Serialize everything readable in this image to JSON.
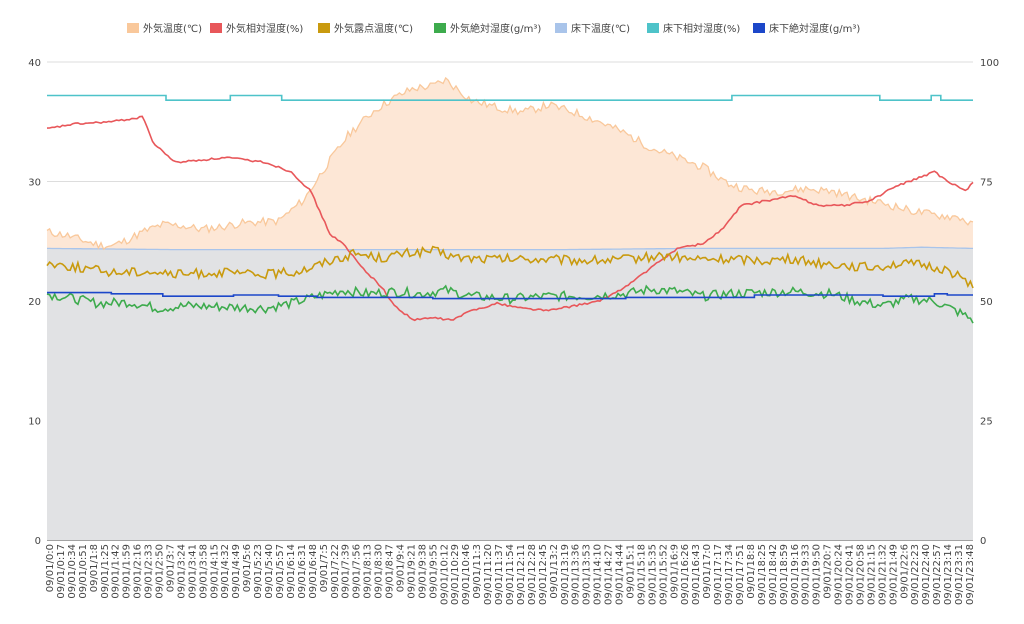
{
  "chart_data": {
    "type": "line",
    "legend_position": "top",
    "grid": true,
    "left_axis": {
      "ylim": [
        0,
        40
      ],
      "ticks": [
        "0",
        "10",
        "20",
        "30",
        "40"
      ]
    },
    "right_axis": {
      "ylim": [
        0,
        100
      ],
      "ticks": [
        "0",
        "25",
        "50",
        "75",
        "100"
      ]
    },
    "x_labels": [
      "09/01/0:0",
      "09/01/0:17",
      "09/01/0:34",
      "09/01/0:51",
      "09/01/1:8",
      "09/01/1:25",
      "09/01/1:42",
      "09/01/1:59",
      "09/01/2:16",
      "09/01/2:33",
      "09/01/2:50",
      "09/01/3:7",
      "09/01/3:24",
      "09/01/3:41",
      "09/01/3:58",
      "09/01/4:15",
      "09/01/4:32",
      "09/01/4:49",
      "09/01/5:6",
      "09/01/5:23",
      "09/01/5:40",
      "09/01/5:57",
      "09/01/6:14",
      "09/01/6:31",
      "09/01/6:48",
      "09/01/7:5",
      "09/01/7:22",
      "09/01/7:39",
      "09/01/7:56",
      "09/01/8:13",
      "09/01/8:30",
      "09/01/8:47",
      "09/01/9:4",
      "09/01/9:21",
      "09/01/9:38",
      "09/01/9:55",
      "09/01/10:12",
      "09/01/10:29",
      "09/01/10:46",
      "09/01/11:3",
      "09/01/11:20",
      "09/01/11:37",
      "09/01/11:54",
      "09/01/12:11",
      "09/01/12:28",
      "09/01/12:45",
      "09/01/13:2",
      "09/01/13:19",
      "09/01/13:36",
      "09/01/13:53",
      "09/01/14:10",
      "09/01/14:27",
      "09/01/14:44",
      "09/01/15:1",
      "09/01/15:18",
      "09/01/15:35",
      "09/01/15:52",
      "09/01/16:9",
      "09/01/16:26",
      "09/01/16:43",
      "09/01/17:0",
      "09/01/17:17",
      "09/01/17:34",
      "09/01/17:51",
      "09/01/18:8",
      "09/01/18:25",
      "09/01/18:42",
      "09/01/18:59",
      "09/01/19:16",
      "09/01/19:33",
      "09/01/19:50",
      "09/01/20:7",
      "09/01/20:24",
      "09/01/20:41",
      "09/01/20:58",
      "09/01/21:15",
      "09/01/21:32",
      "09/01/21:49",
      "09/01/22:6",
      "09/01/22:23",
      "09/01/22:40",
      "09/01/22:57",
      "09/01/23:14",
      "09/01/23:31",
      "09/01/23:48"
    ],
    "x_minutes": [
      0,
      1440
    ],
    "series": [
      {
        "name": "外気温度(℃)",
        "axis": "left",
        "kind": "area",
        "color": "#f9c89b",
        "fill": "#fde7d6",
        "points": [
          [
            0,
            25.8
          ],
          [
            30,
            25.5
          ],
          [
            60,
            25.0
          ],
          [
            80,
            24.7
          ],
          [
            100,
            24.6
          ],
          [
            120,
            25.0
          ],
          [
            150,
            25.8
          ],
          [
            180,
            26.4
          ],
          [
            210,
            26.3
          ],
          [
            240,
            26.0
          ],
          [
            270,
            26.2
          ],
          [
            300,
            26.5
          ],
          [
            360,
            26.7
          ],
          [
            400,
            28.5
          ],
          [
            430,
            31.0
          ],
          [
            470,
            34.0
          ],
          [
            510,
            36.0
          ],
          [
            540,
            37.0
          ],
          [
            570,
            37.8
          ],
          [
            600,
            38.0
          ],
          [
            620,
            38.5
          ],
          [
            660,
            36.8
          ],
          [
            700,
            36.2
          ],
          [
            740,
            35.8
          ],
          [
            780,
            36.4
          ],
          [
            820,
            35.8
          ],
          [
            860,
            35.0
          ],
          [
            900,
            34.0
          ],
          [
            940,
            32.8
          ],
          [
            980,
            32.0
          ],
          [
            1020,
            31.2
          ],
          [
            1060,
            29.8
          ],
          [
            1100,
            29.2
          ],
          [
            1140,
            29.2
          ],
          [
            1180,
            29.4
          ],
          [
            1220,
            29.2
          ],
          [
            1260,
            28.6
          ],
          [
            1300,
            28.2
          ],
          [
            1340,
            27.6
          ],
          [
            1380,
            27.2
          ],
          [
            1420,
            27.0
          ],
          [
            1440,
            26.3
          ]
        ]
      },
      {
        "name": "外気相対湿度(%)",
        "axis": "right",
        "kind": "line",
        "color": "#e8575a",
        "points": [
          [
            0,
            86
          ],
          [
            40,
            87
          ],
          [
            100,
            87.5
          ],
          [
            150,
            88.5
          ],
          [
            165,
            83
          ],
          [
            200,
            79
          ],
          [
            280,
            80
          ],
          [
            340,
            79
          ],
          [
            380,
            77
          ],
          [
            410,
            73
          ],
          [
            440,
            64
          ],
          [
            460,
            62
          ],
          [
            490,
            57
          ],
          [
            520,
            53
          ],
          [
            540,
            49
          ],
          [
            570,
            46
          ],
          [
            600,
            46.5
          ],
          [
            630,
            46
          ],
          [
            660,
            48
          ],
          [
            700,
            49.5
          ],
          [
            740,
            48.5
          ],
          [
            780,
            48
          ],
          [
            820,
            49
          ],
          [
            860,
            50
          ],
          [
            900,
            53
          ],
          [
            940,
            57
          ],
          [
            980,
            61
          ],
          [
            1020,
            62
          ],
          [
            1050,
            65
          ],
          [
            1080,
            70
          ],
          [
            1120,
            71
          ],
          [
            1160,
            72
          ],
          [
            1200,
            70
          ],
          [
            1240,
            70
          ],
          [
            1280,
            71
          ],
          [
            1320,
            74
          ],
          [
            1360,
            76
          ],
          [
            1380,
            77
          ],
          [
            1400,
            75
          ],
          [
            1430,
            73
          ],
          [
            1440,
            75
          ]
        ]
      },
      {
        "name": "外気露点温度(℃)",
        "axis": "left",
        "kind": "line",
        "color": "#c99a0e",
        "points": [
          [
            0,
            23.2
          ],
          [
            50,
            22.8
          ],
          [
            100,
            22.4
          ],
          [
            160,
            22.5
          ],
          [
            200,
            22.2
          ],
          [
            260,
            22.4
          ],
          [
            330,
            22.2
          ],
          [
            380,
            22.4
          ],
          [
            410,
            22.8
          ],
          [
            440,
            23.4
          ],
          [
            480,
            24.0
          ],
          [
            520,
            23.6
          ],
          [
            560,
            24.0
          ],
          [
            600,
            24.2
          ],
          [
            640,
            23.6
          ],
          [
            700,
            23.5
          ],
          [
            760,
            23.5
          ],
          [
            820,
            23.4
          ],
          [
            880,
            23.4
          ],
          [
            920,
            23.6
          ],
          [
            960,
            23.8
          ],
          [
            1000,
            23.5
          ],
          [
            1040,
            23.5
          ],
          [
            1080,
            23.5
          ],
          [
            1120,
            23.4
          ],
          [
            1160,
            23.5
          ],
          [
            1200,
            23.2
          ],
          [
            1240,
            23.0
          ],
          [
            1280,
            22.8
          ],
          [
            1320,
            23.1
          ],
          [
            1360,
            23.0
          ],
          [
            1400,
            22.6
          ],
          [
            1440,
            21.4
          ]
        ]
      },
      {
        "name": "外気絶対湿度(g/m³)",
        "axis": "left",
        "kind": "line",
        "color": "#3dab4d",
        "points": [
          [
            0,
            20.6
          ],
          [
            40,
            20.2
          ],
          [
            80,
            19.8
          ],
          [
            130,
            19.9
          ],
          [
            170,
            19.4
          ],
          [
            220,
            19.6
          ],
          [
            280,
            19.5
          ],
          [
            340,
            19.4
          ],
          [
            380,
            19.8
          ],
          [
            420,
            20.4
          ],
          [
            460,
            20.9
          ],
          [
            500,
            20.6
          ],
          [
            540,
            20.8
          ],
          [
            580,
            20.6
          ],
          [
            620,
            20.9
          ],
          [
            660,
            20.4
          ],
          [
            720,
            20.2
          ],
          [
            780,
            20.4
          ],
          [
            840,
            20.4
          ],
          [
            900,
            20.6
          ],
          [
            940,
            21.0
          ],
          [
            980,
            20.8
          ],
          [
            1020,
            20.4
          ],
          [
            1060,
            20.6
          ],
          [
            1100,
            20.7
          ],
          [
            1160,
            20.8
          ],
          [
            1220,
            20.6
          ],
          [
            1260,
            20.0
          ],
          [
            1300,
            19.6
          ],
          [
            1340,
            20.2
          ],
          [
            1380,
            20.0
          ],
          [
            1420,
            19.0
          ],
          [
            1440,
            18.4
          ]
        ]
      },
      {
        "name": "床下温度(℃)",
        "axis": "left",
        "kind": "area",
        "color": "#a9c4ea",
        "fill": "#e1e2e4",
        "points": [
          [
            0,
            24.4
          ],
          [
            200,
            24.3
          ],
          [
            400,
            24.3
          ],
          [
            600,
            24.3
          ],
          [
            800,
            24.3
          ],
          [
            1000,
            24.4
          ],
          [
            1200,
            24.4
          ],
          [
            1300,
            24.4
          ],
          [
            1360,
            24.5
          ],
          [
            1440,
            24.4
          ]
        ]
      },
      {
        "name": "床下相対湿度(%)",
        "axis": "right",
        "kind": "line",
        "color": "#4ec3c9",
        "points": [
          [
            0,
            93
          ],
          [
            180,
            93
          ],
          [
            185,
            92
          ],
          [
            280,
            92
          ],
          [
            285,
            93
          ],
          [
            360,
            93
          ],
          [
            365,
            92
          ],
          [
            1060,
            92
          ],
          [
            1065,
            93
          ],
          [
            1290,
            93
          ],
          [
            1295,
            92
          ],
          [
            1370,
            92
          ],
          [
            1375,
            93
          ],
          [
            1385,
            93
          ],
          [
            1390,
            92
          ],
          [
            1440,
            92
          ]
        ]
      },
      {
        "name": "床下絶対湿度(g/m³)",
        "axis": "left",
        "kind": "line",
        "color": "#1c47c9",
        "points": [
          [
            0,
            20.7
          ],
          [
            100,
            20.6
          ],
          [
            180,
            20.4
          ],
          [
            280,
            20.4
          ],
          [
            290,
            20.5
          ],
          [
            360,
            20.4
          ],
          [
            420,
            20.3
          ],
          [
            600,
            20.2
          ],
          [
            900,
            20.3
          ],
          [
            1100,
            20.5
          ],
          [
            1280,
            20.5
          ],
          [
            1300,
            20.4
          ],
          [
            1380,
            20.6
          ],
          [
            1400,
            20.5
          ],
          [
            1440,
            20.5
          ]
        ]
      }
    ]
  }
}
